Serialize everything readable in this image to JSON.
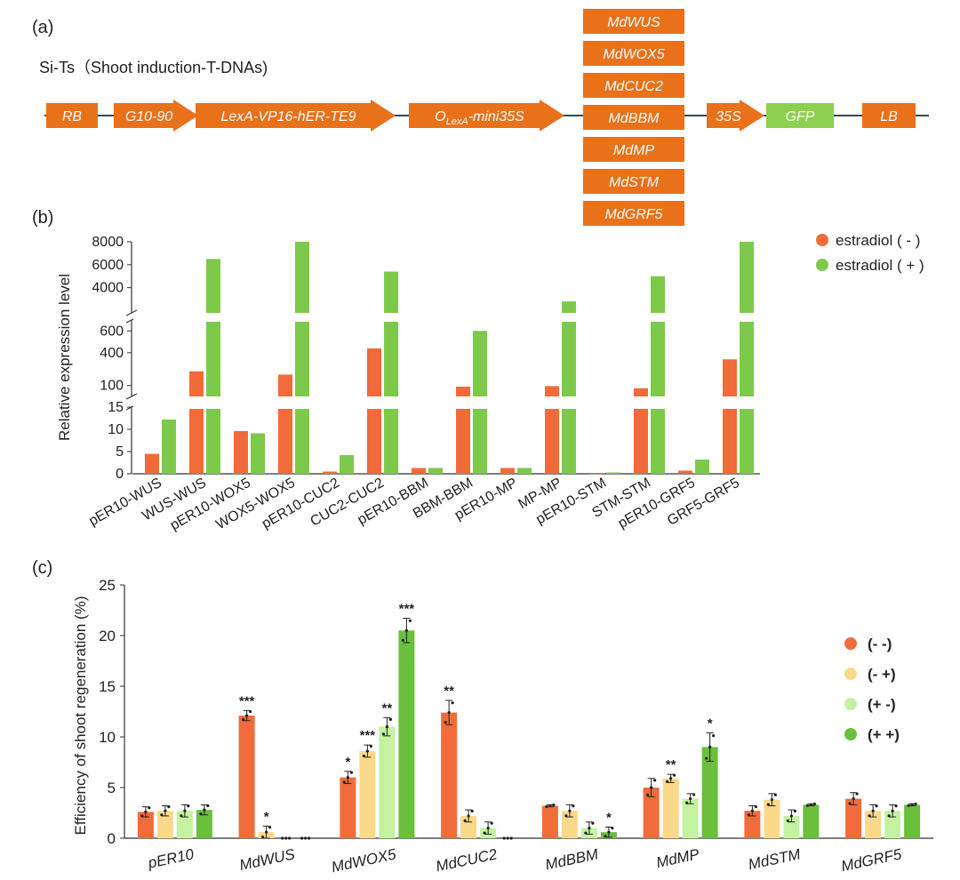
{
  "panel_a": {
    "label": "(a)",
    "subtitle": "Si-Ts（Shoot induction-T-DNAs)",
    "colors": {
      "orange": "#E8711A",
      "green": "#8DCF4E",
      "line": "#2F4A5A"
    },
    "elements": [
      {
        "text": "RB",
        "shape": "box",
        "color": "orange"
      },
      {
        "text": "G10-90",
        "shape": "arrow",
        "color": "orange"
      },
      {
        "text": "LexA-VP16-hER-TE9",
        "shape": "arrow",
        "color": "orange"
      },
      {
        "text": "O",
        "sub": "LexA",
        "tail": "-mini35S",
        "shape": "arrow",
        "color": "orange"
      },
      {
        "text": "35S",
        "shape": "arrow",
        "color": "orange"
      },
      {
        "text": "GFP",
        "shape": "box",
        "color": "green"
      },
      {
        "text": "LB",
        "shape": "box",
        "color": "orange"
      }
    ],
    "gene_stack": [
      "MdWUS",
      "MdWOX5",
      "MdCUC2",
      "MdBBM",
      "MdMP",
      "MdSTM",
      "MdGRF5"
    ]
  },
  "chart_data": [
    {
      "panel": "(b)",
      "type": "bar",
      "ylabel": "Relative expression level",
      "categories": [
        "pER10-WUS",
        "WUS-WUS",
        "pER10-WOX5",
        "WOX5-WOX5",
        "pER10-CUC2",
        "CUC2-CUC2",
        "pER10-BBM",
        "BBM-BBM",
        "pER10-MP",
        "MP-MP",
        "pER10-STM",
        "STM-STM",
        "pER10-GRF5",
        "GRF5-GRF5"
      ],
      "series": [
        {
          "name": "estradiol ( - )",
          "color": "#F26B3A",
          "values": [
            4.5,
            230,
            9.6,
            200,
            0.5,
            440,
            1.3,
            90,
            1.3,
            95,
            0.2,
            75,
            0.7,
            340
          ]
        },
        {
          "name": "estradiol ( + )",
          "color": "#7DC94A",
          "values": [
            12.2,
            6500,
            9.1,
            8000,
            4.2,
            5400,
            1.3,
            600,
            1.3,
            2800,
            0.3,
            5000,
            3.2,
            8000
          ]
        }
      ],
      "axis_breaks": [
        {
          "ylim": [
            0,
            15
          ],
          "ticks": [
            "0",
            "5",
            "10",
            "15"
          ]
        },
        {
          "ylim": [
            0,
            700
          ],
          "ticks": [
            "100",
            "400",
            "600"
          ]
        },
        {
          "ylim": [
            1800,
            8000
          ],
          "ticks": [
            "4000",
            "6000",
            "8000"
          ]
        }
      ]
    },
    {
      "panel": "(c)",
      "type": "bar",
      "ylabel": "Efficiency of shoot regeneration (%)",
      "ylim": [
        0,
        25
      ],
      "yticks": [
        "0",
        "5",
        "10",
        "15",
        "20",
        "25"
      ],
      "categories": [
        "pER10",
        "MdWUS",
        "MdWOX5",
        "MdCUC2",
        "MdBBM",
        "MdMP",
        "MdSTM",
        "MdGRF5"
      ],
      "series": [
        {
          "name": "(- -)",
          "color": "#F26B3A",
          "values": [
            2.6,
            12.1,
            6.0,
            12.4,
            3.2,
            5.0,
            2.7,
            3.9
          ],
          "errors": [
            0.5,
            0.5,
            0.6,
            1.2,
            0.1,
            0.9,
            0.5,
            0.6
          ],
          "sig": [
            "",
            "***",
            "*",
            "**",
            "",
            "",
            "",
            ""
          ]
        },
        {
          "name": "(- +)",
          "color": "#FAD98A",
          "values": [
            2.7,
            0.6,
            8.6,
            2.2,
            2.7,
            5.9,
            3.8,
            2.7
          ],
          "errors": [
            0.5,
            0.6,
            0.6,
            0.6,
            0.6,
            0.4,
            0.6,
            0.6
          ],
          "sig": [
            "",
            "*",
            "***",
            "",
            "",
            "**",
            "",
            ""
          ]
        },
        {
          "name": "(+ -)",
          "color": "#C4F2A0",
          "values": [
            2.7,
            0.0,
            11.0,
            1.0,
            1.0,
            3.9,
            2.2,
            2.7
          ],
          "errors": [
            0.6,
            0.0,
            0.9,
            0.6,
            0.6,
            0.5,
            0.6,
            0.6
          ],
          "sig": [
            "",
            "",
            "**",
            "",
            "",
            "",
            "",
            ""
          ]
        },
        {
          "name": "(+ +)",
          "color": "#6ABF3C",
          "values": [
            2.8,
            0.0,
            20.5,
            0.0,
            0.6,
            9.0,
            3.3,
            3.3
          ],
          "errors": [
            0.5,
            0.0,
            1.2,
            0.0,
            0.5,
            1.4,
            0.1,
            0.1
          ],
          "sig": [
            "",
            "",
            "***",
            "",
            "*",
            "*",
            "",
            ""
          ]
        }
      ]
    }
  ]
}
